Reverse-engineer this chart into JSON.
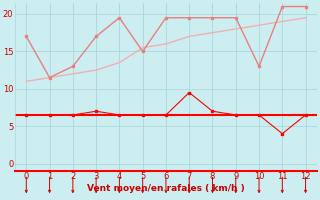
{
  "x": [
    0,
    1,
    2,
    3,
    4,
    5,
    6,
    7,
    8,
    9,
    10,
    11,
    12
  ],
  "rafales": [
    17,
    11.5,
    13,
    17,
    19.5,
    15,
    19.5,
    19.5,
    19.5,
    19.5,
    13,
    21,
    21
  ],
  "moyen": [
    11,
    11.5,
    12,
    12.5,
    13.5,
    15.5,
    16,
    17,
    17.5,
    18,
    18.5,
    19,
    19.5
  ],
  "vent": [
    6.5,
    6.5,
    6.5,
    7.0,
    6.5,
    6.5,
    6.5,
    9.5,
    7.0,
    6.5,
    6.5,
    4.0,
    6.5
  ],
  "hline": 6.5,
  "rafales_color": "#e88080",
  "moyen_color": "#f0b0b0",
  "vent_color": "#ff0000",
  "hline_color": "#ff0000",
  "bg_color": "#cceef0",
  "grid_color": "#aad8dc",
  "axis_color": "#cc0000",
  "xlabel": "Vent moyen/en rafales ( km/h )",
  "xlabel_color": "#cc0000",
  "tick_color": "#cc0000",
  "ylim": [
    -1,
    21.5
  ],
  "xlim": [
    -0.5,
    12.5
  ],
  "yticks": [
    0,
    5,
    10,
    15,
    20
  ],
  "xticks": [
    0,
    1,
    2,
    3,
    4,
    5,
    6,
    7,
    8,
    9,
    10,
    11,
    12
  ]
}
